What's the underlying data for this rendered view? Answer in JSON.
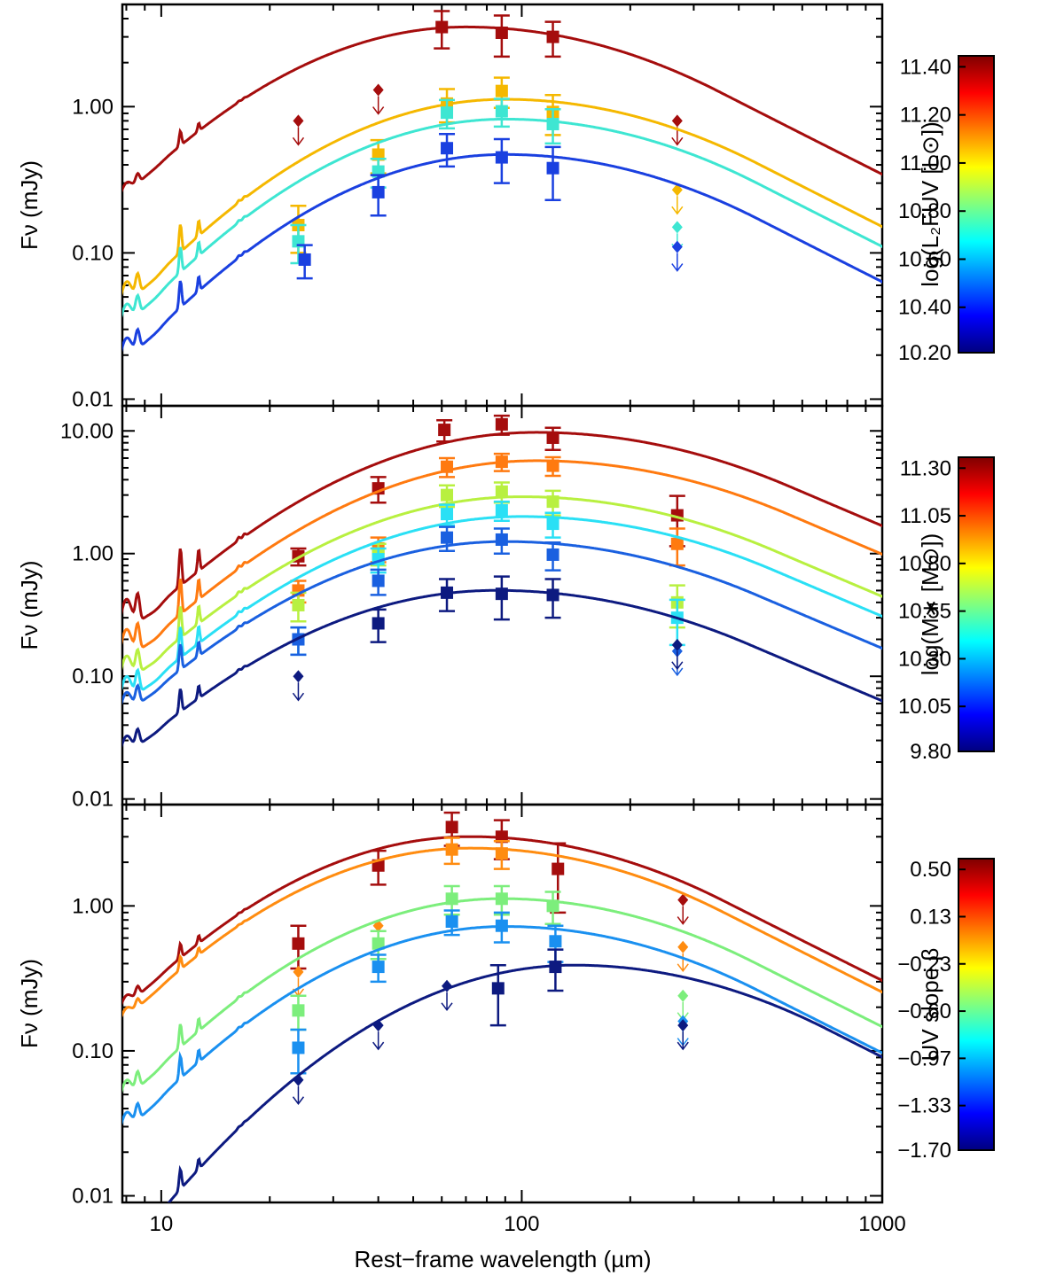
{
  "chart_data": {
    "type": "line",
    "xlabel": "Rest−frame wavelength (µm)",
    "xscale": "log",
    "xlim": [
      7.8,
      1000
    ],
    "x_tick_labels": [
      "10",
      "100",
      "1000"
    ],
    "panels": [
      {
        "ylabel": "Fν (mJy)",
        "yscale": "log",
        "ylim": [
          0.009,
          5.0
        ],
        "y_tick_labels": [
          "0.01",
          "0.10",
          "1.00"
        ],
        "colorbar": {
          "title": "log(L₂FUV [L⊙])",
          "ticks": [
            "11.40",
            "11.20",
            "11.00",
            "10.80",
            "10.60",
            "10.40",
            "10.20"
          ]
        },
        "series": [
          {
            "name": "log L_FUV = 11.40",
            "color": "#a50d0d",
            "peak_wavelength": 70,
            "peak_flux": 3.5,
            "pah_flux_8um": 0.05,
            "detections": [
              [
                60,
                3.5,
                1.0
              ],
              [
                88,
                3.2,
                1.0
              ],
              [
                122,
                3.0,
                0.8
              ]
            ],
            "upper_limits": [
              [
                24,
                0.8
              ],
              [
                40,
                1.3
              ],
              [
                270,
                0.8
              ]
            ]
          },
          {
            "name": "log L_FUV = 11.00",
            "color": "#f5b800",
            "peak_wavelength": 90,
            "peak_flux": 1.12,
            "pah_flux_8um": 0.02,
            "detections": [
              [
                24,
                0.155,
                0.055
              ],
              [
                40,
                0.47,
                0.12
              ],
              [
                62,
                1.05,
                0.27
              ],
              [
                88,
                1.28,
                0.3
              ],
              [
                122,
                0.92,
                0.28
              ]
            ],
            "upper_limits": [
              [
                270,
                0.27
              ]
            ]
          },
          {
            "name": "log L_FUV = 10.80",
            "color": "#3ee6d2",
            "peak_wavelength": 90,
            "peak_flux": 0.82,
            "pah_flux_8um": 0.013,
            "detections": [
              [
                24,
                0.12,
                0.035
              ],
              [
                40,
                0.36,
                0.08
              ],
              [
                62,
                0.91,
                0.2
              ],
              [
                88,
                0.93,
                0.2
              ],
              [
                122,
                0.76,
                0.2
              ]
            ],
            "upper_limits": [
              [
                270,
                0.15
              ]
            ]
          },
          {
            "name": "log L_FUV = 10.40",
            "color": "#1a40e0",
            "peak_wavelength": 90,
            "peak_flux": 0.47,
            "pah_flux_8um": 0.008,
            "detections": [
              [
                25,
                0.09,
                0.023
              ],
              [
                40,
                0.26,
                0.08
              ],
              [
                62,
                0.52,
                0.13
              ],
              [
                88,
                0.45,
                0.15
              ],
              [
                122,
                0.38,
                0.15
              ]
            ],
            "upper_limits": [
              [
                270,
                0.11
              ]
            ]
          }
        ]
      },
      {
        "ylabel": "Fν (mJy)",
        "yscale": "log",
        "ylim": [
          0.009,
          16.0
        ],
        "y_tick_labels": [
          "0.01",
          "0.10",
          "1.00",
          "10.00"
        ],
        "colorbar": {
          "title": "log(M∗ [M⊙])",
          "ticks": [
            "11.30",
            "11.05",
            "10.80",
            "10.55",
            "10.30",
            "10.05",
            "9.80"
          ]
        },
        "series": [
          {
            "name": "log M* = 11.30",
            "color": "#a50d0d",
            "peak_wavelength": 110,
            "peak_flux": 9.7,
            "pah_flux_8um": 0.2,
            "detections": [
              [
                24,
                0.95,
                0.15
              ],
              [
                40,
                3.4,
                0.8
              ],
              [
                61,
                10.2,
                2.0
              ],
              [
                88,
                11.3,
                2.0
              ],
              [
                122,
                8.8,
                1.8
              ],
              [
                270,
                2.05,
                0.9
              ]
            ],
            "upper_limits": []
          },
          {
            "name": "log M* = 11.05",
            "color": "#ff7a10",
            "peak_wavelength": 110,
            "peak_flux": 5.7,
            "pah_flux_8um": 0.11,
            "detections": [
              [
                24,
                0.5,
                0.1
              ],
              [
                40,
                1.1,
                0.25
              ],
              [
                62,
                5.1,
                0.9
              ],
              [
                88,
                5.6,
                0.9
              ],
              [
                122,
                5.2,
                0.9
              ],
              [
                270,
                1.2,
                0.4
              ]
            ],
            "upper_limits": []
          },
          {
            "name": "log M* = 10.55",
            "color": "#b8f040",
            "peak_wavelength": 100,
            "peak_flux": 2.9,
            "pah_flux_8um": 0.06,
            "detections": [
              [
                24,
                0.38,
                0.1
              ],
              [
                40,
                1.0,
                0.2
              ],
              [
                62,
                3.0,
                0.6
              ],
              [
                88,
                3.2,
                0.6
              ],
              [
                122,
                2.65,
                0.6
              ],
              [
                270,
                0.4,
                0.15
              ]
            ],
            "upper_limits": []
          },
          {
            "name": "log M* = 10.30",
            "color": "#2ae0f5",
            "peak_wavelength": 100,
            "peak_flux": 2.0,
            "pah_flux_8um": 0.04,
            "detections": [
              [
                24,
                0.2,
                0.05
              ],
              [
                40,
                0.9,
                0.2
              ],
              [
                62,
                2.1,
                0.4
              ],
              [
                88,
                2.25,
                0.4
              ],
              [
                122,
                1.75,
                0.4
              ],
              [
                270,
                0.3,
                0.12
              ]
            ],
            "upper_limits": []
          },
          {
            "name": "log M* = 10.05",
            "color": "#1a60e0",
            "peak_wavelength": 90,
            "peak_flux": 1.25,
            "pah_flux_8um": 0.025,
            "detections": [
              [
                24,
                0.2,
                0.05
              ],
              [
                40,
                0.6,
                0.14
              ],
              [
                62,
                1.35,
                0.3
              ],
              [
                88,
                1.3,
                0.3
              ],
              [
                122,
                0.98,
                0.25
              ]
            ],
            "upper_limits": [
              [
                270,
                0.16
              ]
            ]
          },
          {
            "name": "log M* = 9.80",
            "color": "#0d1a80",
            "peak_wavelength": 85,
            "peak_flux": 0.5,
            "pah_flux_8um": 0.01,
            "detections": [
              [
                40,
                0.27,
                0.08
              ],
              [
                62,
                0.48,
                0.14
              ],
              [
                88,
                0.47,
                0.18
              ],
              [
                122,
                0.46,
                0.16
              ]
            ],
            "upper_limits": [
              [
                24,
                0.1
              ],
              [
                270,
                0.18
              ]
            ]
          }
        ]
      },
      {
        "ylabel": "Fν (mJy)",
        "yscale": "log",
        "ylim": [
          0.009,
          5.0
        ],
        "y_tick_labels": [
          "0.01",
          "0.10",
          "1.00"
        ],
        "colorbar": {
          "title": "UV slope β",
          "ticks": [
            "0.50",
            "0.13",
            "−0.23",
            "−0.60",
            "−0.97",
            "−1.33",
            "−1.70"
          ]
        },
        "series": [
          {
            "name": "beta = 0.50",
            "color": "#a50d0d",
            "peak_wavelength": 72,
            "peak_flux": 3.0,
            "pah_flux_8um": 0.04,
            "detections": [
              [
                24,
                0.55,
                0.18
              ],
              [
                40,
                1.9,
                0.5
              ],
              [
                64,
                3.5,
                0.9
              ],
              [
                88,
                3.0,
                0.9
              ],
              [
                126,
                1.8,
                0.9
              ]
            ],
            "upper_limits": [
              [
                280,
                1.1
              ]
            ]
          },
          {
            "name": "beta = 0.13",
            "color": "#ff8c10",
            "peak_wavelength": 72,
            "peak_flux": 2.5,
            "pah_flux_8um": 0.03,
            "detections": [
              [
                64,
                2.45,
                0.5
              ],
              [
                88,
                2.3,
                0.5
              ]
            ],
            "upper_limits": [
              [
                24,
                0.35
              ],
              [
                40,
                0.73
              ],
              [
                280,
                0.52
              ]
            ]
          },
          {
            "name": "beta = -0.60",
            "color": "#7cee7c",
            "peak_wavelength": 88,
            "peak_flux": 1.12,
            "pah_flux_8um": 0.017,
            "detections": [
              [
                24,
                0.19,
                0.05
              ],
              [
                40,
                0.55,
                0.12
              ],
              [
                64,
                1.12,
                0.25
              ],
              [
                88,
                1.12,
                0.25
              ],
              [
                122,
                1.0,
                0.25
              ]
            ],
            "upper_limits": [
              [
                280,
                0.24
              ]
            ]
          },
          {
            "name": "beta = -0.97",
            "color": "#1a90f0",
            "peak_wavelength": 90,
            "peak_flux": 0.72,
            "pah_flux_8um": 0.01,
            "detections": [
              [
                24,
                0.105,
                0.035
              ],
              [
                40,
                0.38,
                0.08
              ],
              [
                64,
                0.78,
                0.15
              ],
              [
                88,
                0.73,
                0.17
              ],
              [
                124,
                0.57,
                0.16
              ]
            ],
            "upper_limits": [
              [
                280,
                0.16
              ]
            ]
          },
          {
            "name": "beta = -1.70",
            "color": "#0d1a80",
            "peak_wavelength": 140,
            "peak_flux": 0.39,
            "pah_flux_8um": 0.0015,
            "detections": [
              [
                86,
                0.27,
                0.12
              ],
              [
                124,
                0.38,
                0.12
              ]
            ],
            "upper_limits": [
              [
                24,
                0.063
              ],
              [
                40,
                0.15
              ],
              [
                62,
                0.28
              ],
              [
                280,
                0.15
              ]
            ]
          }
        ]
      }
    ]
  }
}
